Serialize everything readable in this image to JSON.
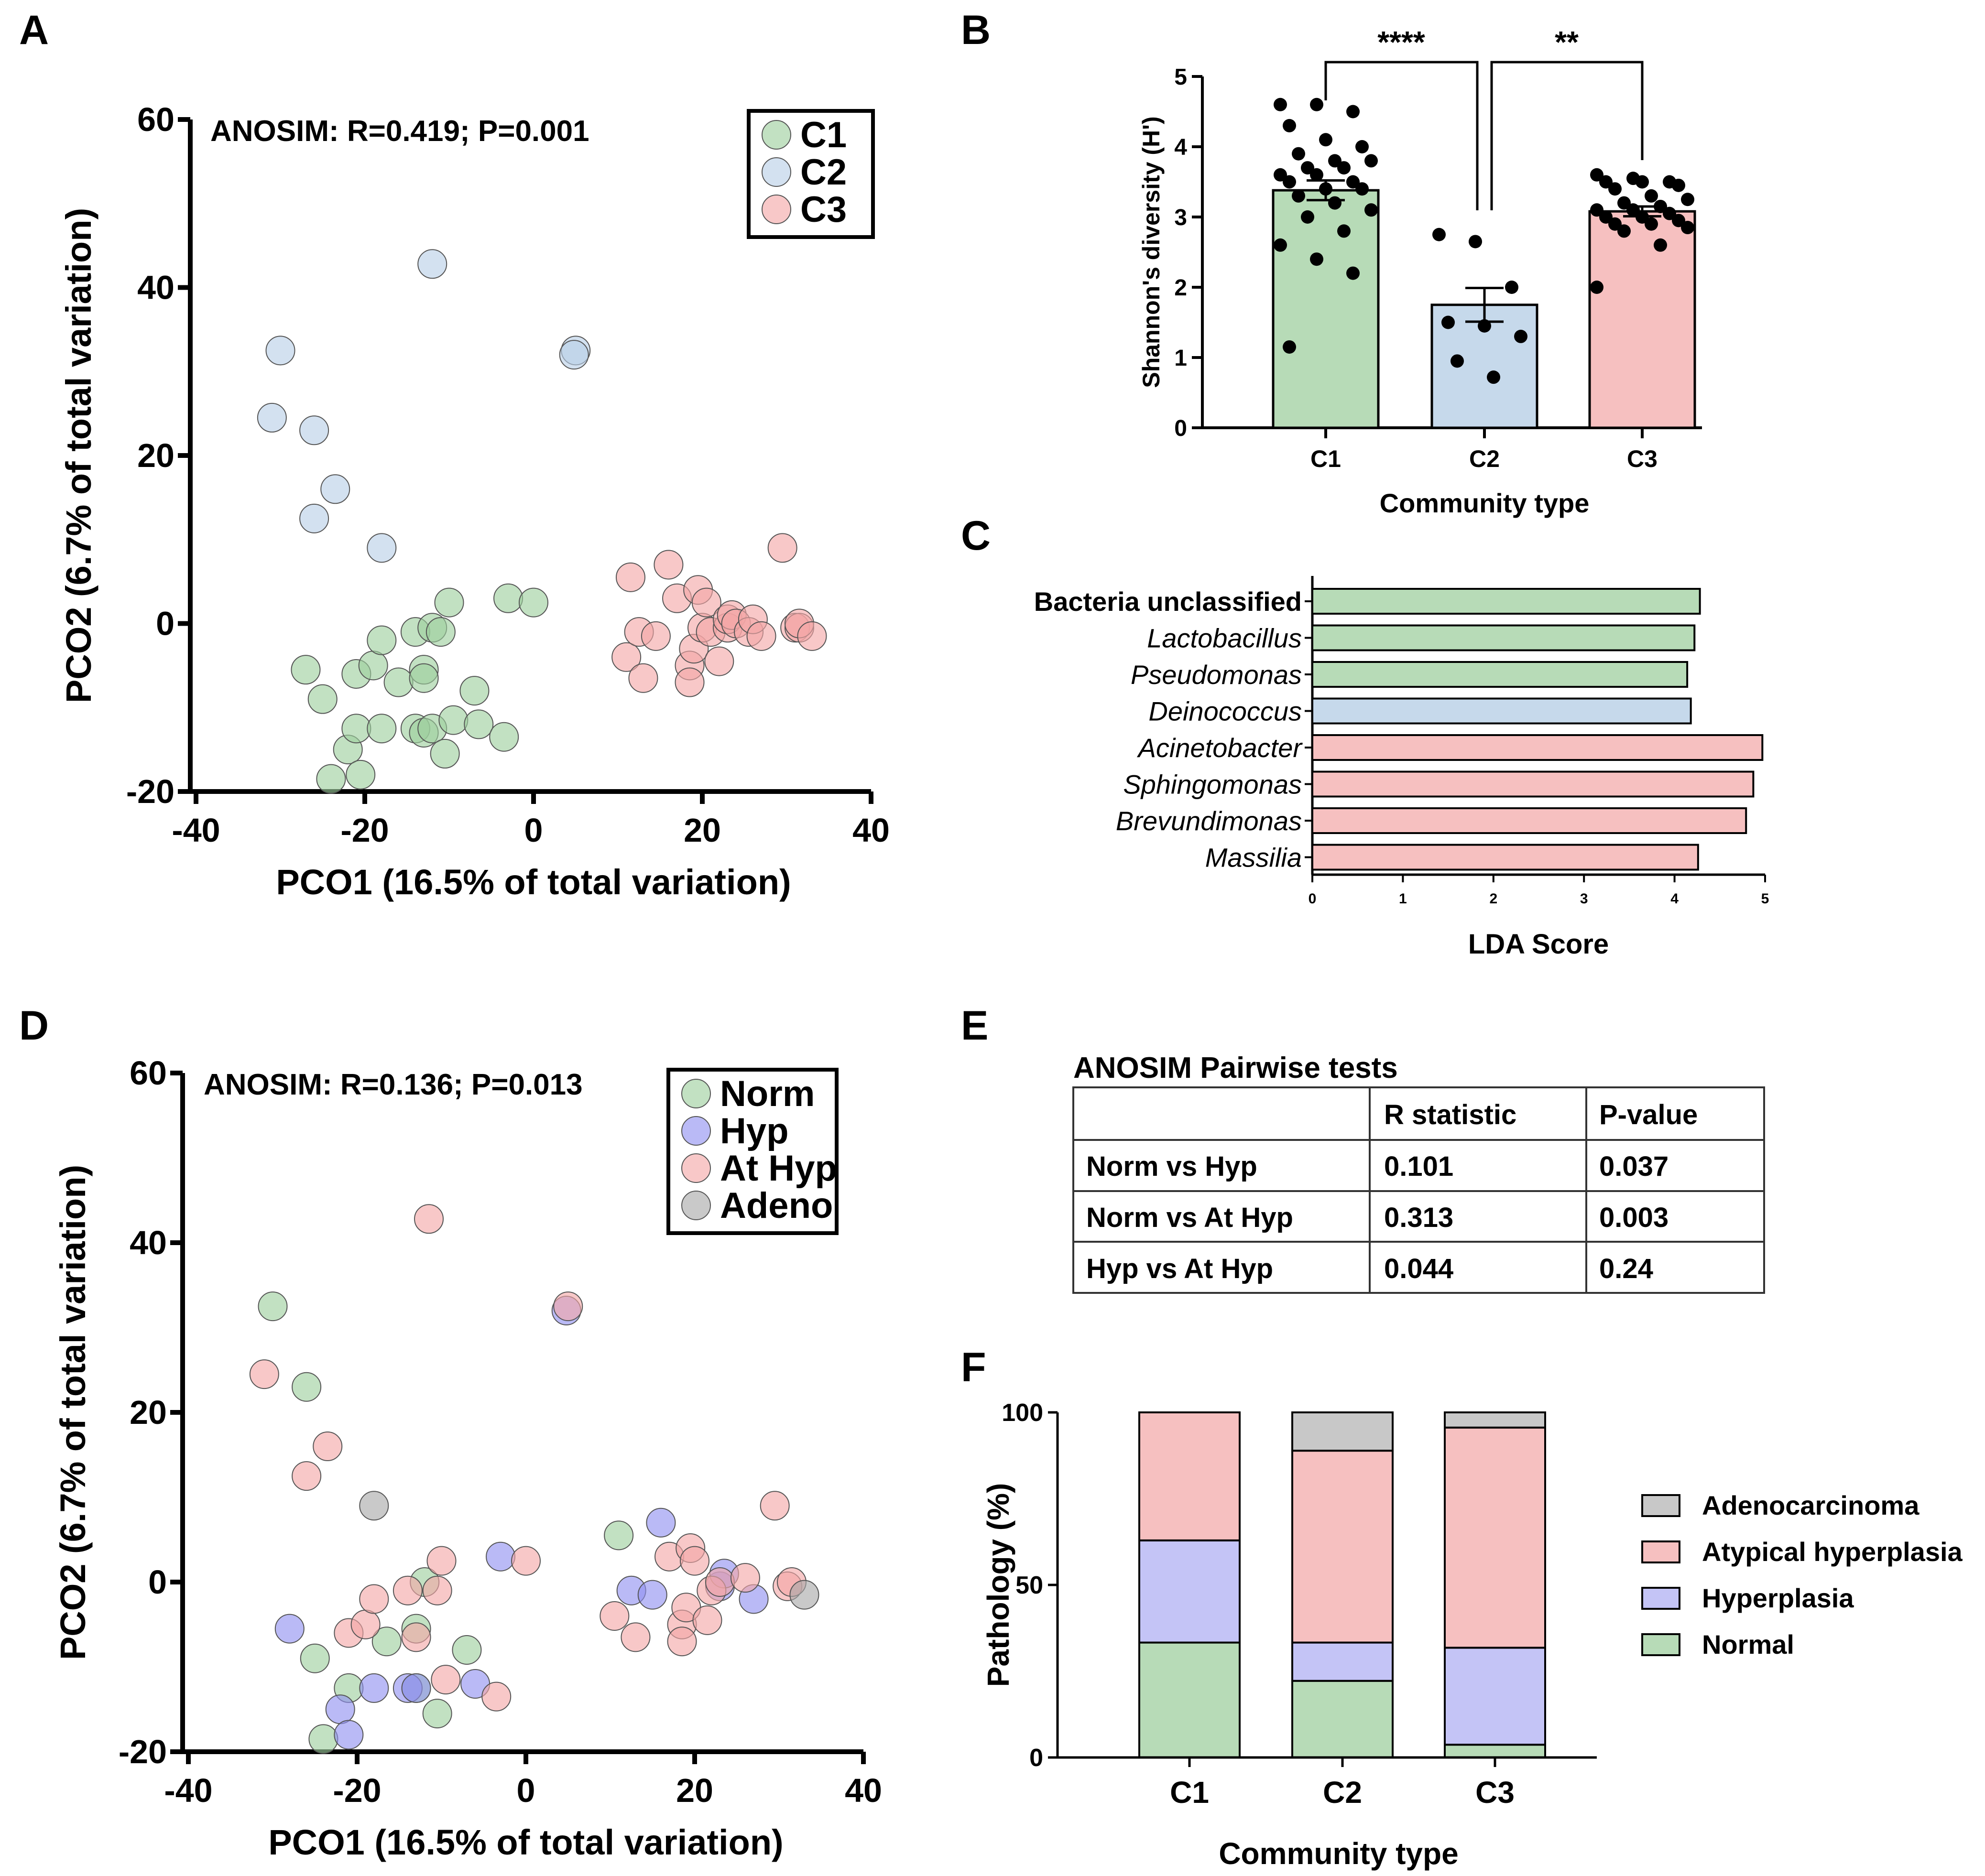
{
  "panel_labels": {
    "a": "A",
    "b": "B",
    "c": "C",
    "d": "D",
    "e": "E",
    "f": "F"
  },
  "chart_data": [
    {
      "id": "A",
      "type": "scatter",
      "title": "",
      "annotation": "ANOSIM: R=0.419; P=0.001",
      "xlabel": "PCO1 (16.5% of total variation)",
      "ylabel": "PCO2 (6.7% of total variation)",
      "xlim": [
        -40,
        40
      ],
      "ylim": [
        -20,
        60
      ],
      "xticks": [
        "-40",
        "-20",
        "0",
        "20",
        "40"
      ],
      "yticks": [
        "-20",
        "0",
        "20",
        "40",
        "60"
      ],
      "legend_position": "top-right",
      "series": [
        {
          "name": "C1",
          "color": "#9ccf9c",
          "points": [
            [
              -27,
              -5.5
            ],
            [
              -25,
              -9
            ],
            [
              -24,
              -18.5
            ],
            [
              -22,
              -15
            ],
            [
              -21,
              -6
            ],
            [
              -21,
              -12.5
            ],
            [
              -20.5,
              -18
            ],
            [
              -19,
              -5
            ],
            [
              -18,
              -2
            ],
            [
              -18,
              -12.5
            ],
            [
              -16,
              -7
            ],
            [
              -14,
              -12.5
            ],
            [
              -14,
              -1
            ],
            [
              -13,
              -5.5
            ],
            [
              -13,
              -6.5
            ],
            [
              -13,
              -13
            ],
            [
              -12,
              -12.5
            ],
            [
              -12,
              -0.5
            ],
            [
              -11,
              -1
            ],
            [
              -10.5,
              -15.5
            ],
            [
              -10,
              2.5
            ],
            [
              -9.5,
              -11.5
            ],
            [
              -7,
              -8
            ],
            [
              -6.5,
              -12
            ],
            [
              -3.5,
              -13.5
            ],
            [
              -3,
              3
            ],
            [
              0,
              2.5
            ]
          ]
        },
        {
          "name": "C2",
          "color": "#b8cfe6",
          "points": [
            [
              -30,
              32.5
            ],
            [
              -31,
              24.5
            ],
            [
              -26,
              23
            ],
            [
              -23.5,
              16
            ],
            [
              -26,
              12.5
            ],
            [
              -18,
              9
            ],
            [
              -12,
              42.8
            ],
            [
              5,
              32.5
            ],
            [
              4.8,
              32
            ]
          ]
        },
        {
          "name": "C3",
          "color": "#f4a7a7",
          "points": [
            [
              11,
              -4
            ],
            [
              11.5,
              5.5
            ],
            [
              12.5,
              -1
            ],
            [
              13,
              -6.5
            ],
            [
              14.5,
              -1.5
            ],
            [
              16,
              7
            ],
            [
              17,
              3
            ],
            [
              18.5,
              -5
            ],
            [
              18.5,
              -7
            ],
            [
              19,
              -3
            ],
            [
              19.5,
              4
            ],
            [
              20,
              -0.5
            ],
            [
              20.5,
              2.5
            ],
            [
              21,
              -1
            ],
            [
              22,
              -4.5
            ],
            [
              23,
              -0.5
            ],
            [
              23,
              0.5
            ],
            [
              23.5,
              1
            ],
            [
              24,
              0
            ],
            [
              25.5,
              -1
            ],
            [
              26,
              0.5
            ],
            [
              27,
              -1.5
            ],
            [
              29.5,
              9
            ],
            [
              31,
              -0.5
            ],
            [
              31.5,
              -0.5
            ],
            [
              31.5,
              0
            ],
            [
              33,
              -1.5
            ]
          ]
        }
      ]
    },
    {
      "id": "B",
      "type": "bar",
      "title": "",
      "xlabel": "Community type",
      "ylabel": "Shannon's diversity (H')",
      "categories": [
        "C1",
        "C2",
        "C3"
      ],
      "values": [
        3.38,
        1.75,
        3.08
      ],
      "sem": [
        0.14,
        0.24,
        0.07
      ],
      "colors": [
        "#b7dbb7",
        "#c6d9eb",
        "#f6c0c0"
      ],
      "ylim": [
        0,
        5
      ],
      "yticks": [
        "0",
        "1",
        "2",
        "3",
        "4",
        "5"
      ],
      "points": [
        [
          4.6,
          4.6,
          4.5,
          4.3,
          4.1,
          4.0,
          3.9,
          3.8,
          3.8,
          3.7,
          3.7,
          3.6,
          3.6,
          3.5,
          3.5,
          3.4,
          3.4,
          3.3,
          3.2,
          3.1,
          3.0,
          2.8,
          2.6,
          2.4,
          2.2,
          1.15
        ],
        [
          2.75,
          2.65,
          2.0,
          1.5,
          1.45,
          1.3,
          0.95,
          0.72
        ],
        [
          3.6,
          3.55,
          3.5,
          3.5,
          3.5,
          3.45,
          3.4,
          3.3,
          3.25,
          3.2,
          3.15,
          3.1,
          3.1,
          3.05,
          3.0,
          3.0,
          2.95,
          2.9,
          2.9,
          2.85,
          2.8,
          2.6,
          2.0
        ]
      ],
      "significance": [
        {
          "between": [
            "C1",
            "C2"
          ],
          "label": "****"
        },
        {
          "between": [
            "C2",
            "C3"
          ],
          "label": "**"
        }
      ]
    },
    {
      "id": "C",
      "type": "bar",
      "orientation": "horizontal",
      "title": "",
      "xlabel": "LDA Score",
      "categories": [
        "Bacteria unclassified",
        "Lactobacillus",
        "Pseudomonas",
        "Deinococcus",
        "Acinetobacter",
        "Sphingomonas",
        "Brevundimonas",
        "Massilia"
      ],
      "values": [
        4.28,
        4.22,
        4.14,
        4.18,
        4.97,
        4.87,
        4.79,
        4.26
      ],
      "colors": [
        "#b7dbb7",
        "#b7dbb7",
        "#b7dbb7",
        "#c6d9eb",
        "#f6c0c0",
        "#f6c0c0",
        "#f6c0c0",
        "#f6c0c0"
      ],
      "xlim": [
        0,
        5
      ],
      "xticks": [
        "0",
        "1",
        "2",
        "3",
        "4",
        "5"
      ]
    },
    {
      "id": "D",
      "type": "scatter",
      "title": "",
      "annotation": "ANOSIM: R=0.136; P=0.013",
      "xlabel": "PCO1 (16.5% of total variation)",
      "ylabel": "PCO2 (6.7% of total variation)",
      "xlim": [
        -40,
        40
      ],
      "ylim": [
        -20,
        60
      ],
      "xticks": [
        "-40",
        "-20",
        "0",
        "20",
        "40"
      ],
      "yticks": [
        "-20",
        "0",
        "20",
        "40",
        "60"
      ],
      "legend_position": "top-right",
      "series": [
        {
          "name": "Norm",
          "color": "#9ccf9c",
          "points": [
            [
              -30,
              32.5
            ],
            [
              -26,
              23
            ],
            [
              -25,
              -9
            ],
            [
              -24,
              -18.5
            ],
            [
              -21,
              -12.5
            ],
            [
              -16.5,
              -7
            ],
            [
              -13,
              -5.5
            ],
            [
              -13,
              -12.5
            ],
            [
              -12,
              0
            ],
            [
              -10.5,
              -15.5
            ],
            [
              -7,
              -8
            ],
            [
              11,
              5.5
            ]
          ]
        },
        {
          "name": "Hyp",
          "color": "#8f8ff0",
          "points": [
            [
              -28,
              -5.5
            ],
            [
              -22,
              -15
            ],
            [
              -21,
              -18
            ],
            [
              -18,
              -12.5
            ],
            [
              -14,
              -12.5
            ],
            [
              -13,
              -12.5
            ],
            [
              -6,
              -12
            ],
            [
              -3,
              3
            ],
            [
              4.8,
              32
            ],
            [
              12.5,
              -1
            ],
            [
              15,
              -1.5
            ],
            [
              16,
              7
            ],
            [
              23,
              -0.5
            ],
            [
              23.5,
              1
            ],
            [
              27,
              -2
            ]
          ]
        },
        {
          "name": "At Hyp",
          "color": "#f4a7a7",
          "points": [
            [
              -31,
              24.5
            ],
            [
              -26,
              12.5
            ],
            [
              -23.5,
              16
            ],
            [
              -21,
              -6
            ],
            [
              -19,
              -5
            ],
            [
              -18,
              -2
            ],
            [
              -14,
              -1
            ],
            [
              -13,
              -6.5
            ],
            [
              -10,
              2.5
            ],
            [
              -10.5,
              -1
            ],
            [
              -9.5,
              -11.5
            ],
            [
              -3.5,
              -13.5
            ],
            [
              0,
              2.5
            ],
            [
              5,
              32.5
            ],
            [
              -11.5,
              42.8
            ],
            [
              10.5,
              -4
            ],
            [
              13,
              -6.5
            ],
            [
              17,
              3
            ],
            [
              18.5,
              -5
            ],
            [
              18.5,
              -7
            ],
            [
              19,
              -3
            ],
            [
              19.5,
              4
            ],
            [
              20,
              2.5
            ],
            [
              21.5,
              -4.5
            ],
            [
              22,
              -1
            ],
            [
              23,
              0
            ],
            [
              26,
              0.5
            ],
            [
              29.5,
              9
            ],
            [
              31,
              -0.5
            ],
            [
              31.5,
              0
            ]
          ]
        },
        {
          "name": "Adeno",
          "color": "#a8a8a8",
          "points": [
            [
              -18,
              9
            ],
            [
              33,
              -1.5
            ]
          ]
        }
      ]
    },
    {
      "id": "F",
      "type": "bar",
      "stacked": true,
      "title": "",
      "xlabel": "Community type",
      "ylabel": "Pathology (%)",
      "categories": [
        "C1",
        "C2",
        "C3"
      ],
      "ylim": [
        0,
        100
      ],
      "yticks": [
        "0",
        "50",
        "100"
      ],
      "legend_position": "right",
      "series": [
        {
          "name": "Normal",
          "color": "#b7dbb7",
          "values": [
            33.3,
            22.2,
            3.7
          ]
        },
        {
          "name": "Hyperplasia",
          "color": "#c4c4f6",
          "values": [
            29.6,
            11.1,
            28.1
          ]
        },
        {
          "name": "Atypical hyperplasia",
          "color": "#f6c0c0",
          "values": [
            37.1,
            55.6,
            63.8
          ]
        },
        {
          "name": "Adenocarcinoma",
          "color": "#c8c8c8",
          "values": [
            0,
            11.1,
            4.4
          ]
        }
      ],
      "legend_order": [
        "Adenocarcinoma",
        "Atypical hyperplasia",
        "Hyperplasia",
        "Normal"
      ]
    },
    {
      "id": "E",
      "type": "table",
      "title": "ANOSIM Pairwise tests",
      "columns": [
        "",
        "R statistic",
        "P-value"
      ],
      "rows": [
        [
          "Norm vs Hyp",
          "0.101",
          "0.037"
        ],
        [
          "Norm vs At Hyp",
          "0.313",
          "0.003"
        ],
        [
          "Hyp vs At Hyp",
          "0.044",
          "0.24"
        ]
      ]
    }
  ]
}
